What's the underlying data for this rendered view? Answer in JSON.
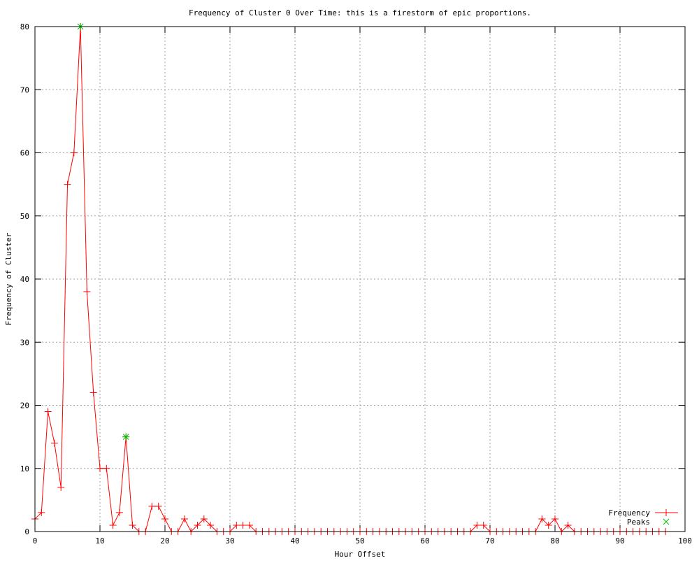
{
  "chart_data": {
    "type": "line",
    "title": "Frequency of Cluster 0 Over Time: this is a firestorm of epic proportions.",
    "xlabel": "Hour Offset",
    "ylabel": "Frequency of Cluster",
    "xlim": [
      0,
      100
    ],
    "ylim": [
      0,
      80
    ],
    "xticks": [
      0,
      10,
      20,
      30,
      40,
      50,
      60,
      70,
      80,
      90,
      100
    ],
    "yticks": [
      0,
      10,
      20,
      30,
      40,
      50,
      60,
      70,
      80
    ],
    "grid": true,
    "legend_position": "bottom-right",
    "series": [
      {
        "name": "Frequency",
        "color": "#ff0000",
        "marker": "plus",
        "x": [
          0,
          1,
          2,
          3,
          4,
          5,
          6,
          7,
          8,
          9,
          10,
          11,
          12,
          13,
          14,
          15,
          16,
          17,
          18,
          19,
          20,
          21,
          22,
          23,
          24,
          25,
          26,
          27,
          28,
          29,
          30,
          31,
          32,
          33,
          34,
          35,
          36,
          37,
          38,
          39,
          40,
          41,
          42,
          43,
          44,
          45,
          46,
          47,
          48,
          49,
          50,
          51,
          52,
          53,
          54,
          55,
          56,
          57,
          58,
          59,
          60,
          61,
          62,
          63,
          64,
          65,
          66,
          67,
          68,
          69,
          70,
          71,
          72,
          73,
          74,
          75,
          76,
          77,
          78,
          79,
          80,
          81,
          82,
          83,
          84,
          85,
          86,
          87,
          88,
          89,
          90,
          91,
          92,
          93,
          94,
          95,
          96,
          97
        ],
        "y": [
          2,
          3,
          19,
          14,
          7,
          55,
          60,
          80,
          38,
          22,
          10,
          10,
          1,
          3,
          15,
          1,
          0,
          0,
          4,
          4,
          2,
          0,
          0,
          2,
          0,
          1,
          2,
          1,
          0,
          0,
          0,
          1,
          1,
          1,
          0,
          0,
          0,
          0,
          0,
          0,
          0,
          0,
          0,
          0,
          0,
          0,
          0,
          0,
          0,
          0,
          0,
          0,
          0,
          0,
          0,
          0,
          0,
          0,
          0,
          0,
          0,
          0,
          0,
          0,
          0,
          0,
          0,
          0,
          1,
          1,
          0,
          0,
          0,
          0,
          0,
          0,
          0,
          0,
          2,
          1,
          2,
          0,
          1,
          0,
          0,
          0,
          0,
          0,
          0,
          0,
          0,
          0,
          0,
          0,
          0,
          0,
          0,
          0
        ]
      },
      {
        "name": "Peaks",
        "color": "#00c000",
        "marker": "cross",
        "x": [
          7,
          14
        ],
        "y": [
          80,
          15
        ]
      }
    ]
  }
}
